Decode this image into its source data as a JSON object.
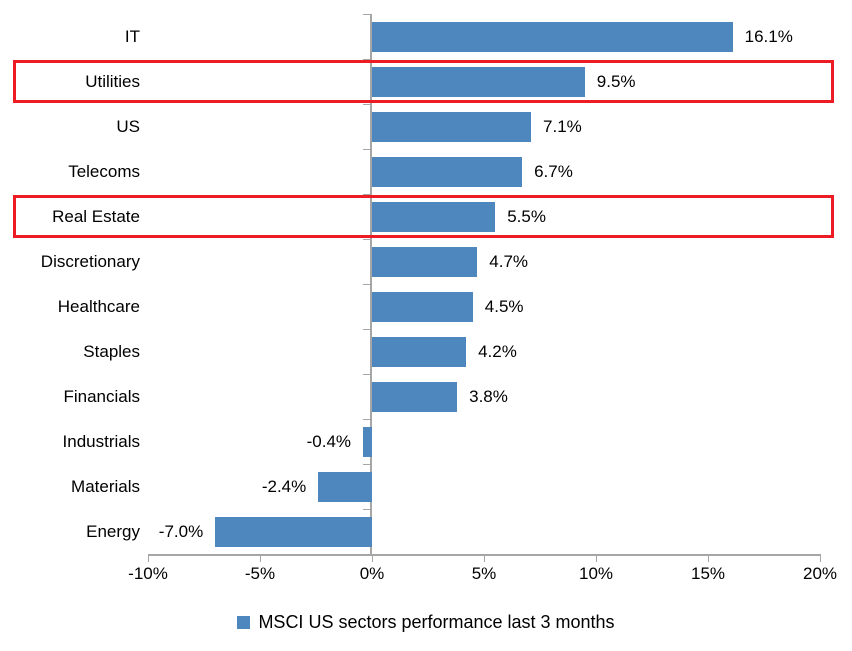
{
  "chart_data": {
    "type": "bar",
    "orientation": "horizontal",
    "title": "",
    "series_name": "MSCI US sectors performance last 3 months",
    "categories": [
      "IT",
      "Utilities",
      "US",
      "Telecoms",
      "Real Estate",
      "Discretionary",
      "Healthcare",
      "Staples",
      "Financials",
      "Industrials",
      "Materials",
      "Energy"
    ],
    "values": [
      16.1,
      9.5,
      7.1,
      6.7,
      5.5,
      4.7,
      4.5,
      4.2,
      3.8,
      -0.4,
      -2.4,
      -7.0
    ],
    "data_labels": [
      "16.1%",
      "9.5%",
      "7.1%",
      "6.7%",
      "5.5%",
      "4.7%",
      "4.5%",
      "4.2%",
      "3.8%",
      "-0.4%",
      "-2.4%",
      "-7.0%"
    ],
    "xlim": [
      -10,
      20
    ],
    "x_ticks": [
      {
        "value": -10,
        "label": "-10%"
      },
      {
        "value": -5,
        "label": "-5%"
      },
      {
        "value": 0,
        "label": "0%"
      },
      {
        "value": 5,
        "label": "5%"
      },
      {
        "value": 10,
        "label": "10%"
      },
      {
        "value": 15,
        "label": "15%"
      },
      {
        "value": 20,
        "label": "20%"
      }
    ],
    "grid": false,
    "legend_position": "bottom",
    "bar_color": "#4e86be",
    "axis_color": "#a6a6a6",
    "text_color": "#000000",
    "highlight_color": "#ed1c24",
    "highlighted_categories": [
      "Utilities",
      "Real Estate"
    ]
  }
}
